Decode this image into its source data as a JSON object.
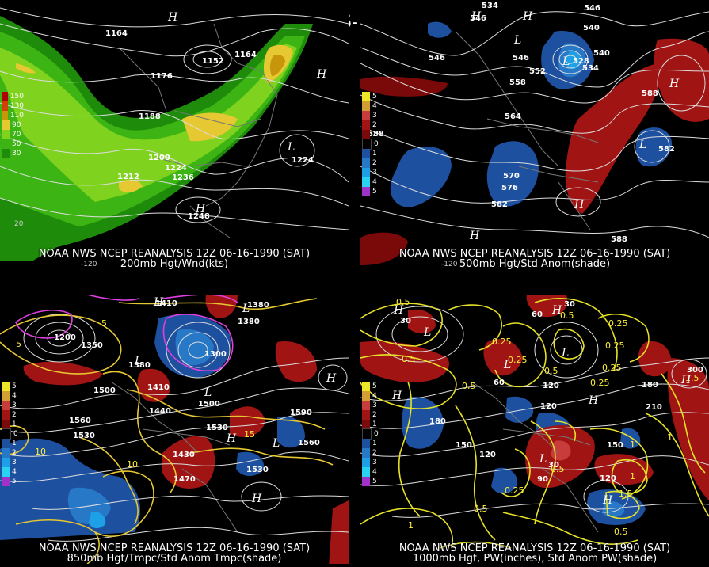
{
  "title": "12Z 06-16-1990 (SAT)",
  "panels": [
    {
      "id": "p1",
      "caption_line1": "NOAA NWS NCEP REANALYSIS 12Z 06-16-1990 (SAT)",
      "caption_line2": "200mb Hgt/Wnd(kts)",
      "legend": [
        {
          "label": "150",
          "color": "#b00000"
        },
        {
          "label": "130",
          "color": "#d04000"
        },
        {
          "label": "110",
          "color": "#c8960a"
        },
        {
          "label": "90",
          "color": "#e6c832"
        },
        {
          "label": "70",
          "color": "#7fd21e"
        },
        {
          "label": "50",
          "color": "#3cb414"
        },
        {
          "label": "30",
          "color": "#1e8c0a"
        }
      ],
      "contour_labels": [
        "1164",
        "1152",
        "1164",
        "1176",
        "1188",
        "1200",
        "1212",
        "1224",
        "1236",
        "1248",
        "1224"
      ],
      "pressure_centers": [
        "H",
        "H",
        "L"
      ],
      "axis_labels": [
        "20",
        "-120"
      ]
    },
    {
      "id": "p2",
      "caption_line1": "NOAA NWS NCEP REANALYSIS 12Z 06-16-1990 (SAT)",
      "caption_line2": "500mb Hgt/Std Anom(shade)",
      "legend": [
        {
          "label": "5",
          "color": "#f0e628"
        },
        {
          "label": "4",
          "color": "#d2a032"
        },
        {
          "label": "3",
          "color": "#c83c3c"
        },
        {
          "label": "2",
          "color": "#a01414"
        },
        {
          "label": "1",
          "color": "#7a0a0a"
        },
        {
          "label": "0",
          "color": "#000000"
        },
        {
          "label": "1",
          "color": "#1e50a0"
        },
        {
          "label": "2",
          "color": "#2878c8"
        },
        {
          "label": "3",
          "color": "#1ea0e6"
        },
        {
          "label": "4",
          "color": "#28d2f0"
        },
        {
          "label": "5",
          "color": "#a032c8"
        }
      ],
      "contour_labels": [
        "534",
        "546",
        "540",
        "546",
        "552",
        "558",
        "564",
        "570",
        "576",
        "582",
        "588",
        "588",
        "582",
        "540",
        "534",
        "528",
        "546",
        "552"
      ],
      "pressure_centers": [
        "H",
        "H",
        "L",
        "L",
        "L",
        "H",
        "H",
        "H"
      ],
      "axis_labels": [
        "-120"
      ]
    },
    {
      "id": "p3",
      "caption_line1": "NOAA NWS NCEP REANALYSIS 12Z 06-16-1990 (SAT)",
      "caption_line2": "850mb Hgt/Tmpc/Std Anom Tmpc(shade)",
      "legend": [
        {
          "label": "5",
          "color": "#f0e628"
        },
        {
          "label": "4",
          "color": "#d2a032"
        },
        {
          "label": "3",
          "color": "#c83c3c"
        },
        {
          "label": "2",
          "color": "#a01414"
        },
        {
          "label": "1",
          "color": "#7a0a0a"
        },
        {
          "label": "0",
          "color": "#000000"
        },
        {
          "label": "1",
          "color": "#1e50a0"
        },
        {
          "label": "2",
          "color": "#2878c8"
        },
        {
          "label": "3",
          "color": "#1ea0e6"
        },
        {
          "label": "4",
          "color": "#28d2f0"
        },
        {
          "label": "5",
          "color": "#a032c8"
        }
      ],
      "contour_labels": [
        "1410",
        "1380",
        "1350",
        "1380",
        "1410",
        "1440",
        "1500",
        "1530",
        "1560",
        "1590",
        "1560",
        "1530",
        "1500",
        "1470",
        "1440",
        "1410",
        "1200",
        "1380",
        "1300"
      ],
      "temp_labels": [
        "5",
        "10",
        "10",
        "15",
        "15"
      ],
      "pressure_centers": [
        "L",
        "L",
        "L",
        "H",
        "H",
        "H",
        "L",
        "H"
      ]
    },
    {
      "id": "p4",
      "caption_line1": "NOAA NWS NCEP REANALYSIS 12Z 06-16-1990 (SAT)",
      "caption_line2": "1000mb Hgt, PW(inches), Std Anom PW(shade)",
      "legend": [
        {
          "label": "5",
          "color": "#f0e628"
        },
        {
          "label": "4",
          "color": "#d2a032"
        },
        {
          "label": "3",
          "color": "#c83c3c"
        },
        {
          "label": "2",
          "color": "#a01414"
        },
        {
          "label": "1",
          "color": "#7a0a0a"
        },
        {
          "label": "0",
          "color": "#000000"
        },
        {
          "label": "1",
          "color": "#1e50a0"
        },
        {
          "label": "2",
          "color": "#2878c8"
        },
        {
          "label": "3",
          "color": "#1ea0e6"
        },
        {
          "label": "4",
          "color": "#28d2f0"
        },
        {
          "label": "5",
          "color": "#a032c8"
        }
      ],
      "contour_labels": [
        "30",
        "60",
        "120",
        "150",
        "180",
        "150",
        "120",
        "90",
        "60",
        "30",
        "120",
        "150",
        "180",
        "210",
        "300",
        "120",
        "30"
      ],
      "pw_labels": [
        "0.5",
        "0.5",
        "0.25",
        "0.25",
        "0.5",
        "0.25",
        "0.25",
        "0.25",
        "0.5",
        "0.25",
        "0.5",
        "0.5",
        "1",
        "1.5",
        "1",
        "1.5",
        "1",
        "0.25",
        "0.5",
        "0.5",
        "1"
      ],
      "pressure_centers": [
        "H",
        "H",
        "L",
        "L",
        "L",
        "H",
        "L",
        "H",
        "H",
        "H"
      ]
    }
  ]
}
